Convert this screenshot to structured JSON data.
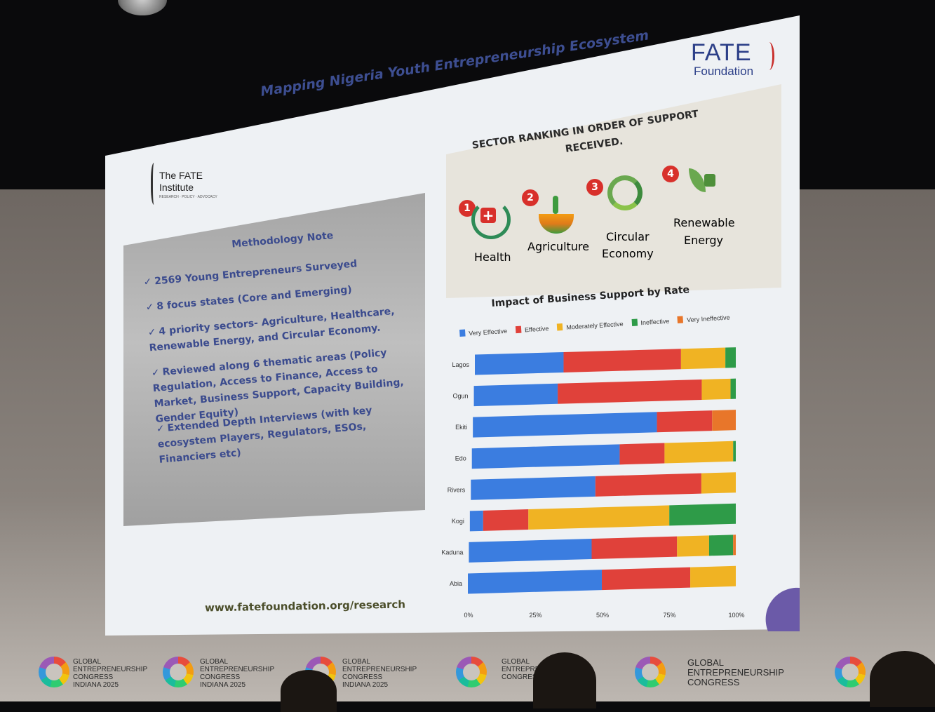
{
  "slide": {
    "title": "Mapping Nigeria Youth Entrepreneurship Ecosystem",
    "url": "www.fatefoundation.org/research",
    "logos": {
      "fate_foundation": {
        "name": "FATE",
        "sub": "Foundation"
      },
      "fate_institute": {
        "line1": "The FATE",
        "line2": "Institute",
        "tagline": "RESEARCH · POLICY · ADVOCACY"
      }
    }
  },
  "methodology": {
    "heading": "Methodology Note",
    "items": [
      "2569 Young Entrepreneurs Surveyed",
      "8 focus states (Core and Emerging)",
      "4 priority sectors- Agriculture, Healthcare, Renewable Energy, and Circular Economy.",
      "Reviewed along 6 thematic areas (Policy Regulation, Access to Finance, Access to Market, Business Support, Capacity Building, Gender Equity)",
      "Extended Depth Interviews (with key ecosystem Players, Regulators, ESOs, Financiers etc)"
    ]
  },
  "sector_ranking": {
    "title_line1": "SECTOR RANKING IN ORDER OF SUPPORT",
    "title_line2": "RECEIVED.",
    "sectors": [
      {
        "rank": "1",
        "label": "Health",
        "icon": "stethoscope-icon"
      },
      {
        "rank": "2",
        "label": "Agriculture",
        "icon": "sprout-icon"
      },
      {
        "rank": "3",
        "label1": "Circular",
        "label2": "Economy",
        "icon": "recycle-icon"
      },
      {
        "rank": "4",
        "label1": "Renewable",
        "label2": "Energy",
        "icon": "leaf-plug-icon"
      }
    ]
  },
  "banner": {
    "line1": "GLOBAL",
    "line2": "ENTREPRENEURSHIP",
    "line3": "CONGRESS",
    "line4": "INDIANA 2025"
  },
  "chart_data": {
    "type": "bar",
    "orientation": "horizontal",
    "stacked": true,
    "title": "Impact of Business Support by Rate",
    "categories": [
      "Lagos",
      "Ogun",
      "Ekiti",
      "Edo",
      "Rivers",
      "Kogi",
      "Kaduna",
      "Abia"
    ],
    "series": [
      {
        "name": "Very Effective",
        "color": "#3b7de0",
        "values": [
          34,
          32,
          70,
          56,
          47,
          5,
          46,
          50
        ]
      },
      {
        "name": "Effective",
        "color": "#e0413a",
        "values": [
          45,
          55,
          21,
          17,
          40,
          17,
          32,
          33
        ]
      },
      {
        "name": "Moderately Effective",
        "color": "#f0b323",
        "values": [
          17,
          11,
          0,
          26,
          13,
          53,
          12,
          17
        ]
      },
      {
        "name": "Ineffective",
        "color": "#2e9b48",
        "values": [
          4,
          2,
          0,
          1,
          0,
          25,
          9,
          0
        ]
      },
      {
        "name": "Very Ineffective",
        "color": "#e8762a",
        "values": [
          0,
          0,
          9,
          0,
          0,
          0,
          1,
          0
        ]
      }
    ],
    "xticks": [
      "0%",
      "25%",
      "50%",
      "75%",
      "100%"
    ],
    "xlim": [
      0,
      100
    ],
    "legend_position": "top"
  }
}
